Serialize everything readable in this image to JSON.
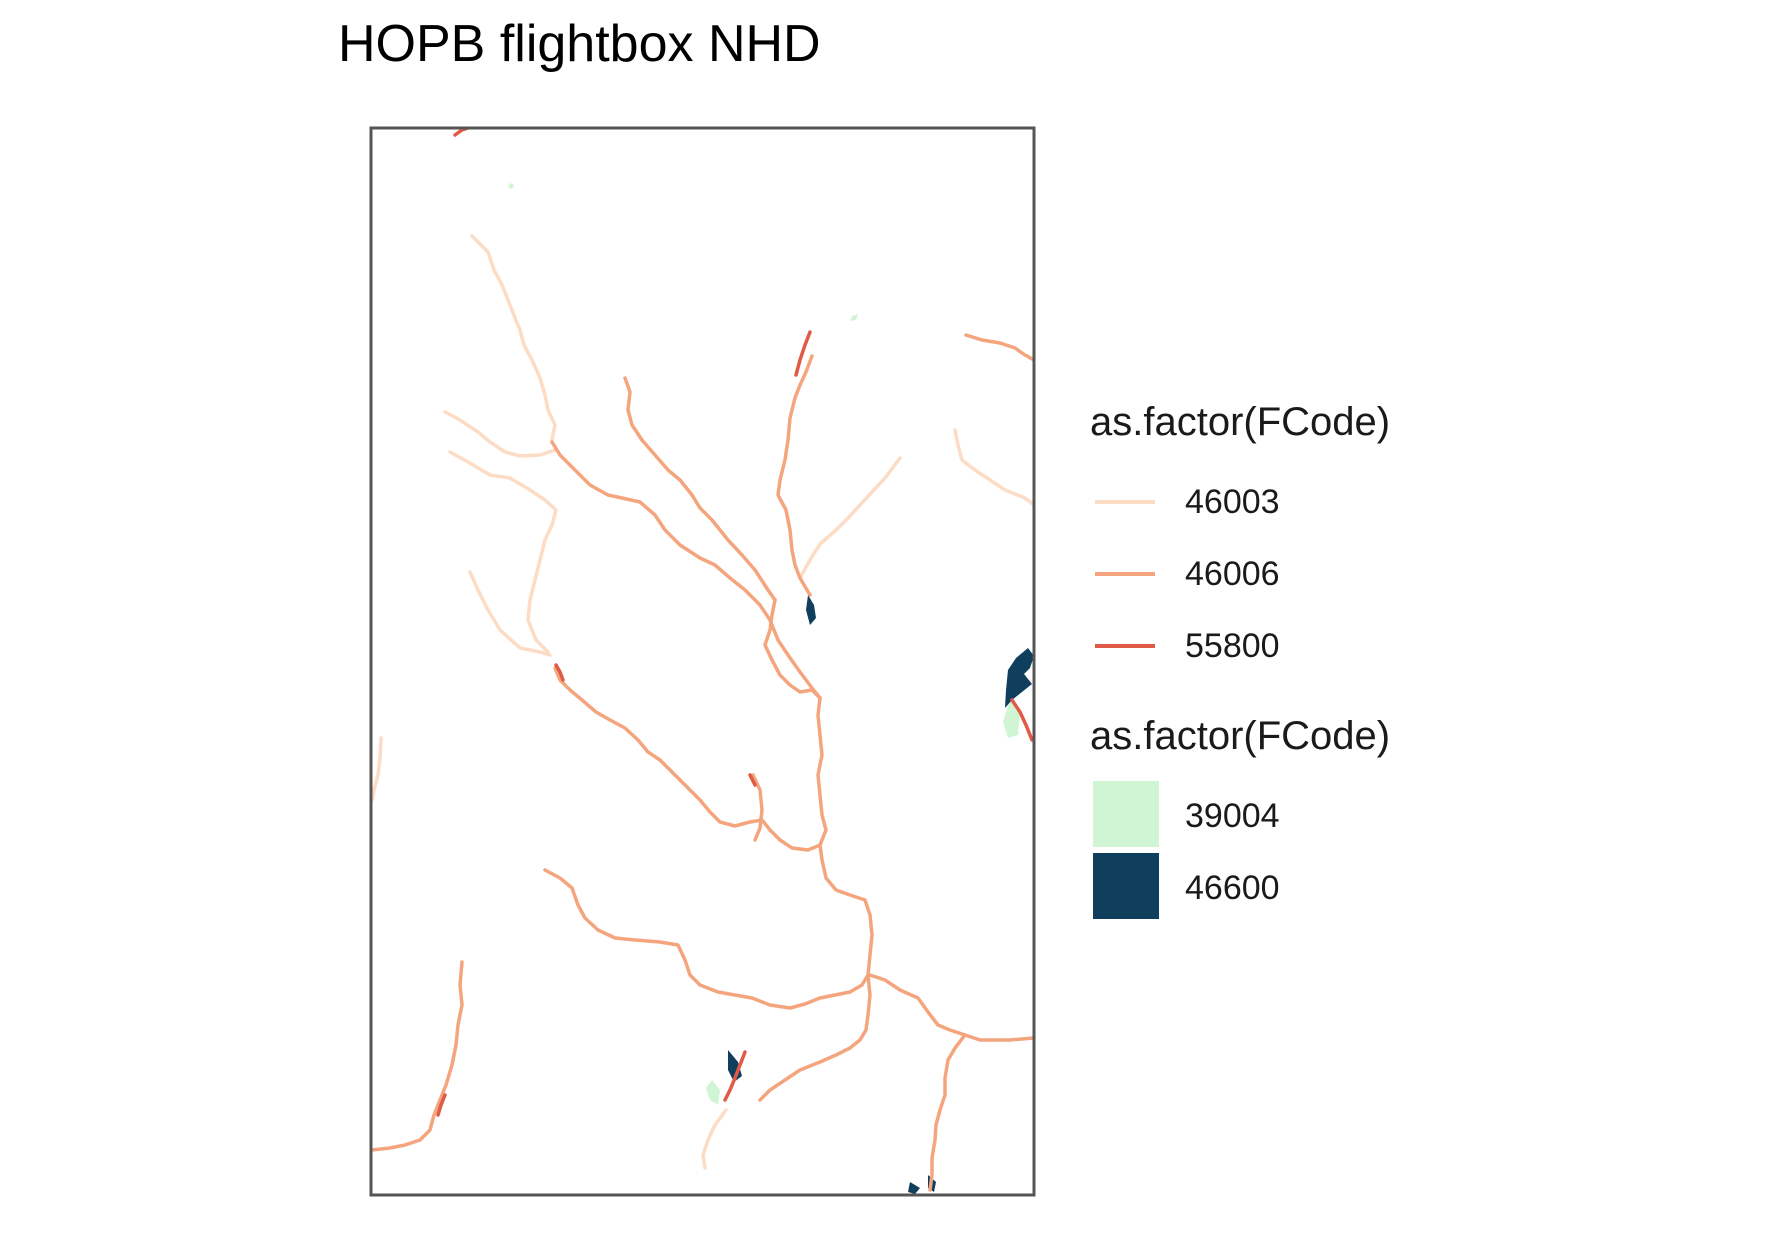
{
  "title": "HOPB flightbox NHD",
  "legend_lines": {
    "title": "as.factor(FCode)",
    "items": [
      {
        "label": "46003",
        "color": "#FCDCC5"
      },
      {
        "label": "46006",
        "color": "#F4A57E"
      },
      {
        "label": "55800",
        "color": "#E05A46"
      }
    ]
  },
  "legend_fills": {
    "title": "as.factor(FCode)",
    "items": [
      {
        "label": "39004",
        "color": "#D0F5D4"
      },
      {
        "label": "46600",
        "color": "#0F3F5C"
      }
    ]
  },
  "colors": {
    "frame": "#555555",
    "background": "#ffffff"
  }
}
